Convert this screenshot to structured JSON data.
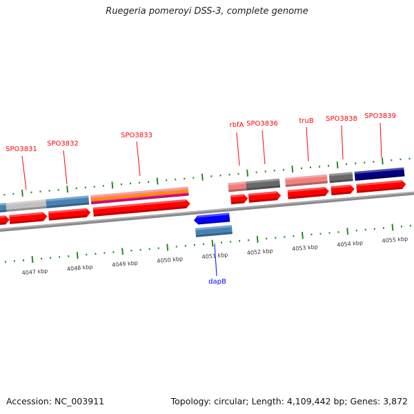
{
  "title": "Ruegeria pomeroyi DSS-3, complete genome",
  "footer": {
    "accession": "Accession: NC_003911",
    "topology": "Topology: circular; Length: 4,109,442 bp; Genes: 3,872"
  },
  "genes_forward": [
    "SPO3831",
    "SPO3832",
    "SPO3833",
    "rbfA",
    "SPO3836",
    "truB",
    "SPO3838",
    "SPO3839"
  ],
  "genes_reverse": [
    "dapB"
  ],
  "kbp_labels": [
    "4047 kbp",
    "4048 kbp",
    "4049 kbp",
    "4050 kbp",
    "4051 kbp",
    "4052 kbp",
    "4053 kbp",
    "4054 kbp",
    "4055 kbp"
  ],
  "colors": {
    "forward_arrow": "#ff0000",
    "reverse_arrow": "#0000ff",
    "forward_label": "#ff0000",
    "reverse_label": "#0000ff",
    "tick": "#228b22",
    "backbone": "#808080"
  }
}
